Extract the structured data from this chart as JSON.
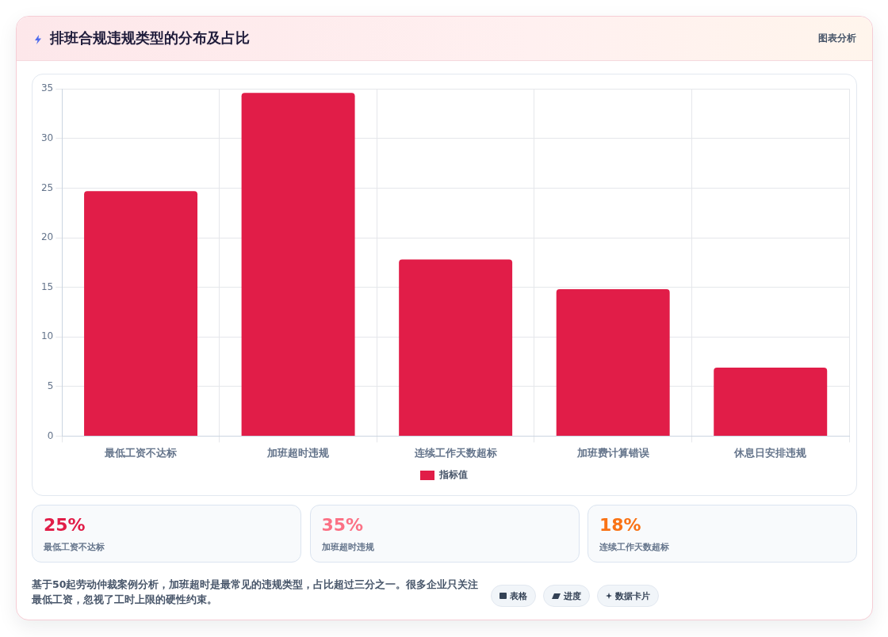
{
  "chart_data": [
    {
      "type": "bar",
      "title": "排班合规违规类型的分布及占比",
      "annotations": [
        "图表分析"
      ],
      "categories": [
        "最低工资不达标",
        "加班超时违规",
        "连续工作天数超标",
        "加班费计算错误",
        "休息日安排违规"
      ],
      "series": [
        {
          "name": "指标值",
          "color": "#e11d48",
          "values": [
            24.7,
            34.6,
            17.8,
            14.8,
            6.9
          ]
        }
      ],
      "ylim": [
        0,
        35
      ],
      "yticks": [
        0,
        5,
        10,
        15,
        20,
        25,
        30,
        35
      ],
      "grid": true,
      "legend": "bottom"
    },
    {
      "type": "other",
      "categories": [
        "最低工资不达标",
        "加班超时违规",
        "连续工作天数超标"
      ],
      "value_labels": [
        "25%",
        "35%",
        "18%"
      ],
      "annotations": [
        "基于50起劳动仲裁案例分析，加班超时是最常见的违规类型，占比超过三分之一。很多企业只关注最低工资，忽视了工时上限的硬性约束。",
        "表格",
        "进度",
        "数据卡片"
      ]
    }
  ]
}
